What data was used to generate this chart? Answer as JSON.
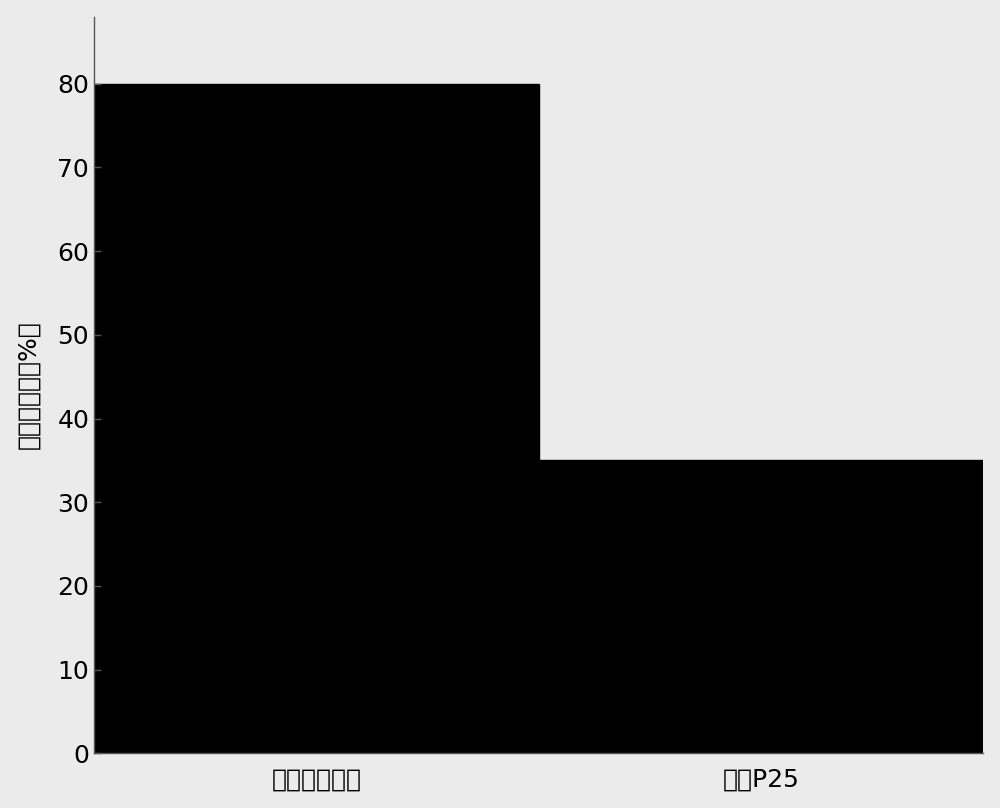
{
  "categories": [
    "复合二氧化钓",
    "商用P25"
  ],
  "values": [
    80,
    35
  ],
  "bar_color": "#000000",
  "ylabel": "甲苯去除率（%）",
  "ylim": [
    0,
    88
  ],
  "yticks": [
    0,
    10,
    20,
    30,
    40,
    50,
    60,
    70,
    80
  ],
  "bar_width": 0.5,
  "background_color": "#ebebeb",
  "axes_background": "#ebebeb",
  "tick_fontsize": 18,
  "label_fontsize": 18,
  "x_positions": [
    0.25,
    0.75
  ],
  "xlim": [
    0,
    1
  ]
}
